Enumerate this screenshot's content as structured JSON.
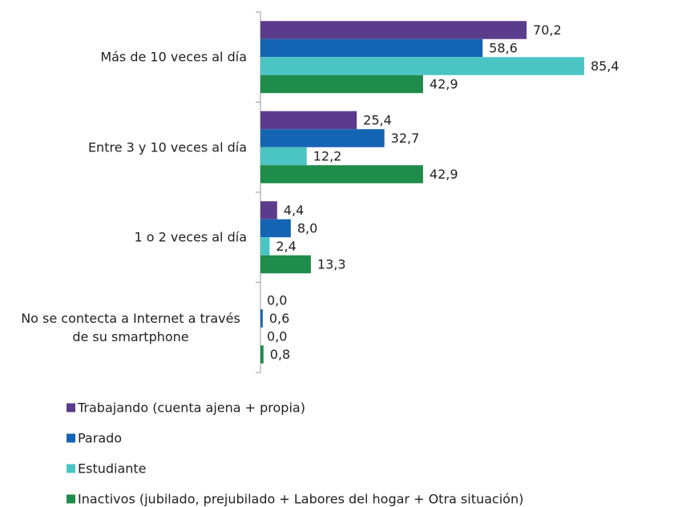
{
  "chart_data": {
    "type": "barh",
    "categories": [
      "Más de 10 veces al día",
      "Entre 3 y 10 veces al día",
      "1 o 2 veces al día",
      "No se contecta a Internet a través de su smartphone"
    ],
    "series": [
      {
        "name": "Trabajando (cuenta ajena + propia)",
        "color": "#5b3c8c",
        "values": [
          70.2,
          25.4,
          4.4,
          0.0
        ],
        "value_labels": [
          "70,2",
          "25,4",
          "4,4",
          "0,0"
        ]
      },
      {
        "name": "Parado",
        "color": "#1464b4",
        "values": [
          58.6,
          32.7,
          8.0,
          0.6
        ],
        "value_labels": [
          "58,6",
          "32,7",
          "8,0",
          "0,6"
        ]
      },
      {
        "name": "Estudiante",
        "color": "#4bc4c4",
        "values": [
          85.4,
          12.2,
          2.4,
          0.0
        ],
        "value_labels": [
          "85,4",
          "12,2",
          "2,4",
          "0,0"
        ]
      },
      {
        "name": "Inactivos (jubilado, prejubilado + Labores del hogar + Otra situación)",
        "color": "#1e8c4a",
        "values": [
          42.9,
          42.9,
          13.3,
          0.8
        ],
        "value_labels": [
          "42,9",
          "42,9",
          "13,3",
          "0,8"
        ]
      }
    ],
    "xlim": [
      0,
      100
    ]
  }
}
